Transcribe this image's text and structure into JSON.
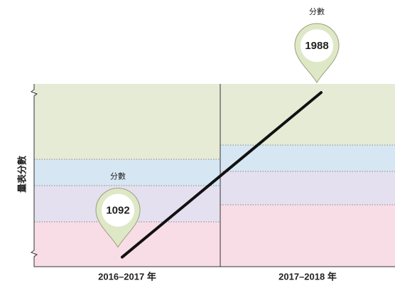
{
  "chart_data": {
    "type": "line",
    "y_label": "量表分數",
    "categories": [
      "2016–2017 年",
      "2017–2018 年"
    ],
    "series": [
      {
        "name": "分數",
        "color": "#111111",
        "values": [
          1092,
          1988
        ]
      }
    ],
    "ylim": [
      1040,
      2035
    ]
  }
}
